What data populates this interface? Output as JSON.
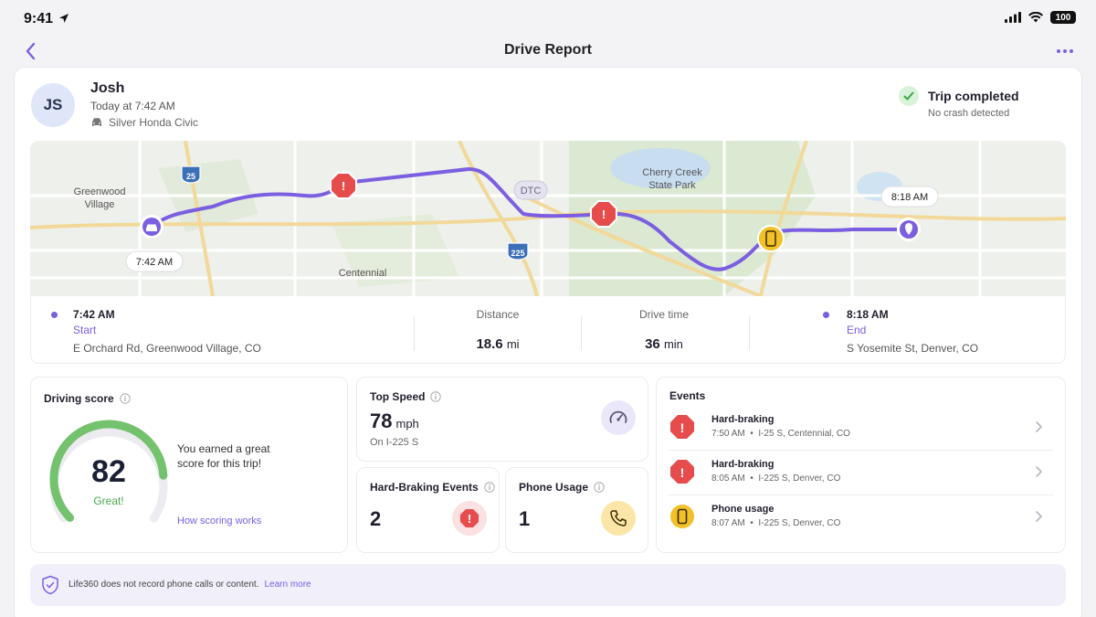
{
  "status_bar": {
    "time": "9:41",
    "battery": "100"
  },
  "nav": {
    "title": "Drive Report"
  },
  "user": {
    "initials": "JS",
    "name": "Josh",
    "time": "Today at 7:42 AM",
    "vehicle": "Silver Honda Civic"
  },
  "trip_status": {
    "title": "Trip completed",
    "subtitle": "No crash detected"
  },
  "map": {
    "labels": {
      "greenwood_1": "Greenwood",
      "greenwood_2": "Village",
      "centennial": "Centennial",
      "cherry_creek_1": "Cherry Creek",
      "cherry_creek_2": "State Park",
      "dtc": "DTC",
      "i25": "25",
      "i225": "225"
    },
    "start_time_bubble": "7:42 AM",
    "end_time_bubble": "8:18 AM"
  },
  "trip": {
    "start": {
      "time": "7:42 AM",
      "label": "Start",
      "address": "E Orchard Rd, Greenwood Village, CO"
    },
    "distance": {
      "label": "Distance",
      "value": "18.6",
      "unit": "mi"
    },
    "drive_time": {
      "label": "Drive time",
      "value": "36",
      "unit": "min"
    },
    "end": {
      "time": "8:18 AM",
      "label": "End",
      "address": "S Yosemite St, Denver, CO"
    }
  },
  "driving_score": {
    "title": "Driving score",
    "score": "82",
    "score_fraction": 0.82,
    "rating": "Great!",
    "message": "You earned a great score for this trip!",
    "link": "How scoring works"
  },
  "top_speed": {
    "title": "Top Speed",
    "value": "78",
    "unit": "mph",
    "note": "On I-225 S"
  },
  "hard_braking": {
    "title": "Hard-Braking Events",
    "value": "2"
  },
  "phone_usage": {
    "title": "Phone Usage",
    "value": "1"
  },
  "events": {
    "title": "Events",
    "items": [
      {
        "title": "Hard-braking",
        "time": "7:50 AM",
        "location": "I-25 S, Centennial, CO",
        "icon": "hard-braking-icon"
      },
      {
        "title": "Hard-braking",
        "time": "8:05 AM",
        "location": "I-225 S, Denver, CO",
        "icon": "hard-braking-icon"
      },
      {
        "title": "Phone usage",
        "time": "8:07 AM",
        "location": "I-225 S, Denver, CO",
        "icon": "phone-icon"
      }
    ]
  },
  "privacy": {
    "text": "Life360 does not record phone calls or content.",
    "link": "Learn more"
  },
  "colors": {
    "accent": "#7b5fe0",
    "alert": "#e74c4c",
    "phone": "#f2c029",
    "score_green": "#4aa84e"
  }
}
